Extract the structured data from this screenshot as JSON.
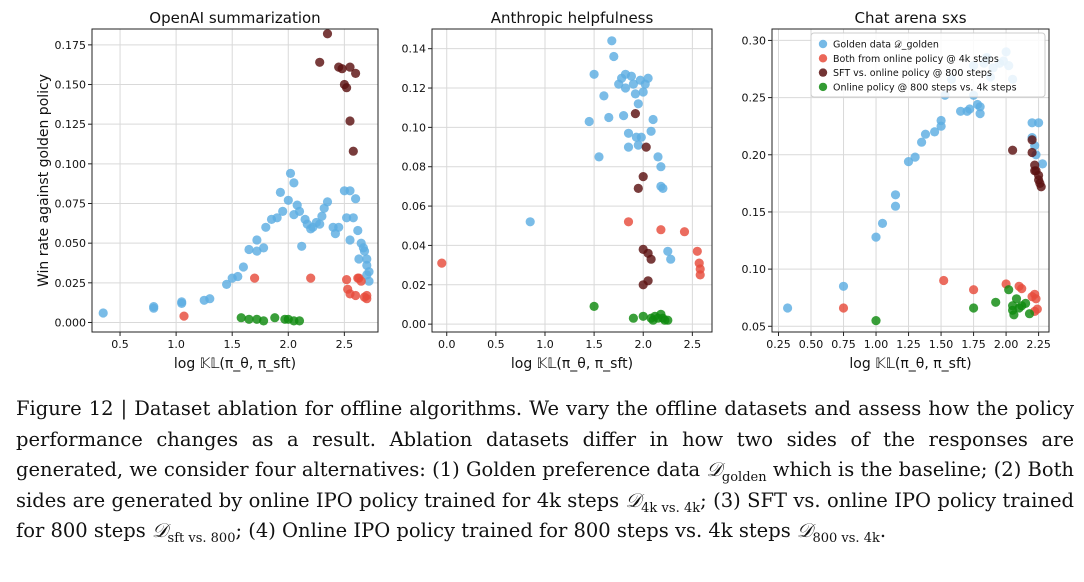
{
  "chart_data": [
    {
      "type": "scatter",
      "title": "OpenAI summarization",
      "xlabel": "log 𝕂𝕃(π_θ, π_sft)",
      "ylabel": "Win rate against golden policy",
      "xlim": [
        0.25,
        2.8
      ],
      "ylim": [
        -0.006,
        0.185
      ],
      "xticks": [
        0.5,
        1.0,
        1.5,
        2.0,
        2.5
      ],
      "xtick_labels": [
        "0.5",
        "1.0",
        "1.5",
        "2.0",
        "2.5"
      ],
      "yticks": [
        0.0,
        0.025,
        0.05,
        0.075,
        0.1,
        0.125,
        0.15,
        0.175
      ],
      "ytick_labels": [
        "0.000",
        "0.025",
        "0.050",
        "0.075",
        "0.100",
        "0.125",
        "0.150",
        "0.175"
      ],
      "grid": true,
      "series": [
        {
          "color": "#5dade2",
          "points": [
            [
              0.35,
              0.006
            ],
            [
              0.8,
              0.009
            ],
            [
              0.8,
              0.01
            ],
            [
              1.05,
              0.012
            ],
            [
              1.05,
              0.013
            ],
            [
              1.25,
              0.014
            ],
            [
              1.3,
              0.015
            ],
            [
              1.45,
              0.024
            ],
            [
              1.5,
              0.028
            ],
            [
              1.55,
              0.029
            ],
            [
              1.6,
              0.035
            ],
            [
              1.65,
              0.046
            ],
            [
              1.72,
              0.045
            ],
            [
              1.78,
              0.047
            ],
            [
              1.72,
              0.052
            ],
            [
              1.8,
              0.06
            ],
            [
              1.85,
              0.065
            ],
            [
              1.9,
              0.066
            ],
            [
              1.93,
              0.082
            ],
            [
              1.95,
              0.07
            ],
            [
              2.0,
              0.077
            ],
            [
              2.02,
              0.094
            ],
            [
              2.05,
              0.088
            ],
            [
              2.05,
              0.068
            ],
            [
              2.08,
              0.074
            ],
            [
              2.1,
              0.07
            ],
            [
              2.12,
              0.048
            ],
            [
              2.15,
              0.065
            ],
            [
              2.17,
              0.062
            ],
            [
              2.2,
              0.059
            ],
            [
              2.22,
              0.06
            ],
            [
              2.25,
              0.063
            ],
            [
              2.28,
              0.062
            ],
            [
              2.3,
              0.067
            ],
            [
              2.32,
              0.072
            ],
            [
              2.35,
              0.076
            ],
            [
              2.4,
              0.06
            ],
            [
              2.42,
              0.056
            ],
            [
              2.45,
              0.06
            ],
            [
              2.5,
              0.083
            ],
            [
              2.52,
              0.066
            ],
            [
              2.55,
              0.083
            ],
            [
              2.55,
              0.052
            ],
            [
              2.58,
              0.066
            ],
            [
              2.6,
              0.078
            ],
            [
              2.62,
              0.058
            ],
            [
              2.63,
              0.04
            ],
            [
              2.65,
              0.05
            ],
            [
              2.67,
              0.047
            ],
            [
              2.68,
              0.045
            ],
            [
              2.7,
              0.04
            ],
            [
              2.7,
              0.036
            ],
            [
              2.7,
              0.03
            ],
            [
              2.72,
              0.026
            ],
            [
              2.72,
              0.032
            ]
          ]
        },
        {
          "color": "#e74c3c",
          "points": [
            [
              1.07,
              0.004
            ],
            [
              1.7,
              0.028
            ],
            [
              2.2,
              0.028
            ],
            [
              2.52,
              0.027
            ],
            [
              2.53,
              0.021
            ],
            [
              2.55,
              0.018
            ],
            [
              2.6,
              0.017
            ],
            [
              2.62,
              0.028
            ],
            [
              2.63,
              0.028
            ],
            [
              2.65,
              0.026
            ],
            [
              2.68,
              0.016
            ],
            [
              2.7,
              0.015
            ],
            [
              2.7,
              0.017
            ]
          ]
        },
        {
          "color": "#5b1111",
          "points": [
            [
              2.28,
              0.164
            ],
            [
              2.35,
              0.182
            ],
            [
              2.45,
              0.161
            ],
            [
              2.48,
              0.16
            ],
            [
              2.5,
              0.15
            ],
            [
              2.52,
              0.148
            ],
            [
              2.55,
              0.161
            ],
            [
              2.55,
              0.127
            ],
            [
              2.58,
              0.108
            ],
            [
              2.6,
              0.157
            ]
          ]
        },
        {
          "color": "#0f8a0f",
          "points": [
            [
              1.58,
              0.003
            ],
            [
              1.65,
              0.002
            ],
            [
              1.72,
              0.002
            ],
            [
              1.78,
              0.001
            ],
            [
              1.88,
              0.003
            ],
            [
              1.97,
              0.002
            ],
            [
              2.0,
              0.002
            ],
            [
              2.05,
              0.001
            ],
            [
              2.1,
              0.001
            ]
          ]
        }
      ]
    },
    {
      "type": "scatter",
      "title": "Anthropic helpfulness",
      "xlabel": "log 𝕂𝕃(π_θ, π_sft)",
      "ylabel": "",
      "xlim": [
        -0.15,
        2.7
      ],
      "ylim": [
        -0.004,
        0.15
      ],
      "xticks": [
        0.0,
        0.5,
        1.0,
        1.5,
        2.0,
        2.5
      ],
      "xtick_labels": [
        "0.0",
        "0.5",
        "1.0",
        "1.5",
        "2.0",
        "2.5"
      ],
      "yticks": [
        0.0,
        0.02,
        0.04,
        0.06,
        0.08,
        0.1,
        0.12,
        0.14
      ],
      "ytick_labels": [
        "0.00",
        "0.02",
        "0.04",
        "0.06",
        "0.08",
        "0.10",
        "0.12",
        "0.14"
      ],
      "grid": true,
      "series": [
        {
          "color": "#5dade2",
          "points": [
            [
              0.85,
              0.052
            ],
            [
              1.45,
              0.103
            ],
            [
              1.5,
              0.127
            ],
            [
              1.55,
              0.085
            ],
            [
              1.6,
              0.116
            ],
            [
              1.65,
              0.105
            ],
            [
              1.68,
              0.144
            ],
            [
              1.7,
              0.136
            ],
            [
              1.75,
              0.122
            ],
            [
              1.78,
              0.125
            ],
            [
              1.8,
              0.106
            ],
            [
              1.82,
              0.127
            ],
            [
              1.82,
              0.12
            ],
            [
              1.85,
              0.097
            ],
            [
              1.85,
              0.09
            ],
            [
              1.88,
              0.126
            ],
            [
              1.9,
              0.122
            ],
            [
              1.92,
              0.117
            ],
            [
              1.93,
              0.095
            ],
            [
              1.95,
              0.091
            ],
            [
              1.95,
              0.112
            ],
            [
              1.97,
              0.124
            ],
            [
              1.98,
              0.095
            ],
            [
              2.0,
              0.118
            ],
            [
              2.02,
              0.122
            ],
            [
              2.05,
              0.125
            ],
            [
              2.08,
              0.098
            ],
            [
              2.1,
              0.104
            ],
            [
              2.15,
              0.085
            ],
            [
              2.18,
              0.08
            ],
            [
              2.18,
              0.07
            ],
            [
              2.2,
              0.069
            ],
            [
              2.25,
              0.037
            ],
            [
              2.28,
              0.033
            ]
          ]
        },
        {
          "color": "#e74c3c",
          "points": [
            [
              -0.05,
              0.031
            ],
            [
              1.85,
              0.052
            ],
            [
              2.18,
              0.048
            ],
            [
              2.42,
              0.047
            ],
            [
              2.55,
              0.037
            ],
            [
              2.57,
              0.031
            ],
            [
              2.58,
              0.028
            ],
            [
              2.58,
              0.025
            ]
          ]
        },
        {
          "color": "#5b1111",
          "points": [
            [
              1.92,
              0.107
            ],
            [
              1.95,
              0.069
            ],
            [
              2.0,
              0.075
            ],
            [
              2.03,
              0.09
            ],
            [
              2.0,
              0.038
            ],
            [
              2.05,
              0.036
            ],
            [
              2.08,
              0.033
            ],
            [
              2.0,
              0.02
            ],
            [
              2.05,
              0.022
            ]
          ]
        },
        {
          "color": "#0f8a0f",
          "points": [
            [
              1.5,
              0.009
            ],
            [
              1.9,
              0.003
            ],
            [
              2.0,
              0.004
            ],
            [
              2.08,
              0.003
            ],
            [
              2.1,
              0.002
            ],
            [
              2.12,
              0.004
            ],
            [
              2.15,
              0.003
            ],
            [
              2.18,
              0.005
            ],
            [
              2.2,
              0.003
            ],
            [
              2.22,
              0.002
            ],
            [
              2.25,
              0.002
            ]
          ]
        }
      ]
    },
    {
      "type": "scatter",
      "title": "Chat arena sxs",
      "xlabel": "log 𝕂𝕃(π_θ, π_sft)",
      "ylabel": "",
      "xlim": [
        0.2,
        2.33
      ],
      "ylim": [
        0.045,
        0.31
      ],
      "xticks": [
        0.25,
        0.5,
        0.75,
        1.0,
        1.25,
        1.5,
        1.75,
        2.0,
        2.25
      ],
      "xtick_labels": [
        "0.25",
        "0.50",
        "0.75",
        "1.00",
        "1.25",
        "1.50",
        "1.75",
        "2.00",
        "2.25"
      ],
      "yticks": [
        0.05,
        0.1,
        0.15,
        0.2,
        0.25,
        0.3
      ],
      "ytick_labels": [
        "0.05",
        "0.10",
        "0.15",
        "0.20",
        "0.25",
        "0.30"
      ],
      "grid": true,
      "legend": {
        "placement": "top-right",
        "entries": [
          "Golden data 𝒟_golden",
          "Both from online policy @ 4k steps",
          "SFT vs. online policy @ 800 steps",
          "Online policy @ 800 steps vs. 4k steps"
        ]
      },
      "series": [
        {
          "name": "Golden data 𝒟_golden",
          "color": "#5dade2",
          "points": [
            [
              0.32,
              0.066
            ],
            [
              0.75,
              0.085
            ],
            [
              1.0,
              0.128
            ],
            [
              1.05,
              0.14
            ],
            [
              1.15,
              0.165
            ],
            [
              1.15,
              0.155
            ],
            [
              1.25,
              0.194
            ],
            [
              1.3,
              0.198
            ],
            [
              1.35,
              0.211
            ],
            [
              1.38,
              0.218
            ],
            [
              1.45,
              0.22
            ],
            [
              1.5,
              0.23
            ],
            [
              1.5,
              0.225
            ],
            [
              1.53,
              0.252
            ],
            [
              1.58,
              0.266
            ],
            [
              1.65,
              0.238
            ],
            [
              1.7,
              0.238
            ],
            [
              1.72,
              0.24
            ],
            [
              1.75,
              0.252
            ],
            [
              1.75,
              0.278
            ],
            [
              1.78,
              0.244
            ],
            [
              1.8,
              0.236
            ],
            [
              1.8,
              0.242
            ],
            [
              1.83,
              0.28
            ],
            [
              1.85,
              0.285
            ],
            [
              1.88,
              0.268
            ],
            [
              1.9,
              0.276
            ],
            [
              1.95,
              0.28
            ],
            [
              1.98,
              0.282
            ],
            [
              2.0,
              0.29
            ],
            [
              2.02,
              0.278
            ],
            [
              2.05,
              0.266
            ],
            [
              2.2,
              0.228
            ],
            [
              2.2,
              0.215
            ],
            [
              2.22,
              0.208
            ],
            [
              2.23,
              0.2
            ],
            [
              2.25,
              0.228
            ],
            [
              2.28,
              0.192
            ]
          ]
        },
        {
          "name": "Both from online policy @ 4k steps",
          "color": "#e74c3c",
          "points": [
            [
              0.75,
              0.066
            ],
            [
              1.52,
              0.09
            ],
            [
              1.75,
              0.082
            ],
            [
              2.0,
              0.087
            ],
            [
              2.1,
              0.085
            ],
            [
              2.12,
              0.083
            ],
            [
              2.2,
              0.076
            ],
            [
              2.22,
              0.078
            ],
            [
              2.23,
              0.074
            ],
            [
              2.22,
              0.063
            ],
            [
              2.24,
              0.065
            ]
          ]
        },
        {
          "name": "SFT vs. online policy @ 800 steps",
          "color": "#5b1111",
          "points": [
            [
              2.05,
              0.204
            ],
            [
              2.2,
              0.213
            ],
            [
              2.2,
              0.202
            ],
            [
              2.22,
              0.191
            ],
            [
              2.22,
              0.186
            ],
            [
              2.23,
              0.186
            ],
            [
              2.25,
              0.182
            ],
            [
              2.25,
              0.178
            ],
            [
              2.26,
              0.175
            ],
            [
              2.27,
              0.172
            ]
          ]
        },
        {
          "name": "Online policy @ 800 steps vs. 4k steps",
          "color": "#0f8a0f",
          "points": [
            [
              1.0,
              0.055
            ],
            [
              1.75,
              0.066
            ],
            [
              1.92,
              0.071
            ],
            [
              2.02,
              0.082
            ],
            [
              2.05,
              0.068
            ],
            [
              2.05,
              0.064
            ],
            [
              2.06,
              0.06
            ],
            [
              2.08,
              0.074
            ],
            [
              2.1,
              0.066
            ],
            [
              2.12,
              0.068
            ],
            [
              2.15,
              0.07
            ],
            [
              2.18,
              0.061
            ]
          ]
        }
      ]
    }
  ],
  "caption": {
    "text_1": "Figure 12 | Dataset ablation for offline algorithms. We vary the offline datasets and assess how the policy performance changes as a result. Ablation datasets differ in how two sides of the responses are generated, we consider four alternatives: (1) Golden preference data ",
    "sym_1": "𝒟",
    "sub_1": "golden",
    "text_2": " which is the baseline; (2) Both sides are generated by online IPO policy trained for 4k steps ",
    "sym_2": "𝒟",
    "sub_2": "4k vs. 4k",
    "text_3": "; (3) SFT vs. online IPO policy trained for 800 steps ",
    "sym_3": "𝒟",
    "sub_3": "sft vs. 800",
    "text_4": "; (4) Online IPO policy trained for 800 steps vs. 4k steps ",
    "sym_4": "𝒟",
    "sub_4": "800 vs. 4k",
    "text_5": "."
  }
}
